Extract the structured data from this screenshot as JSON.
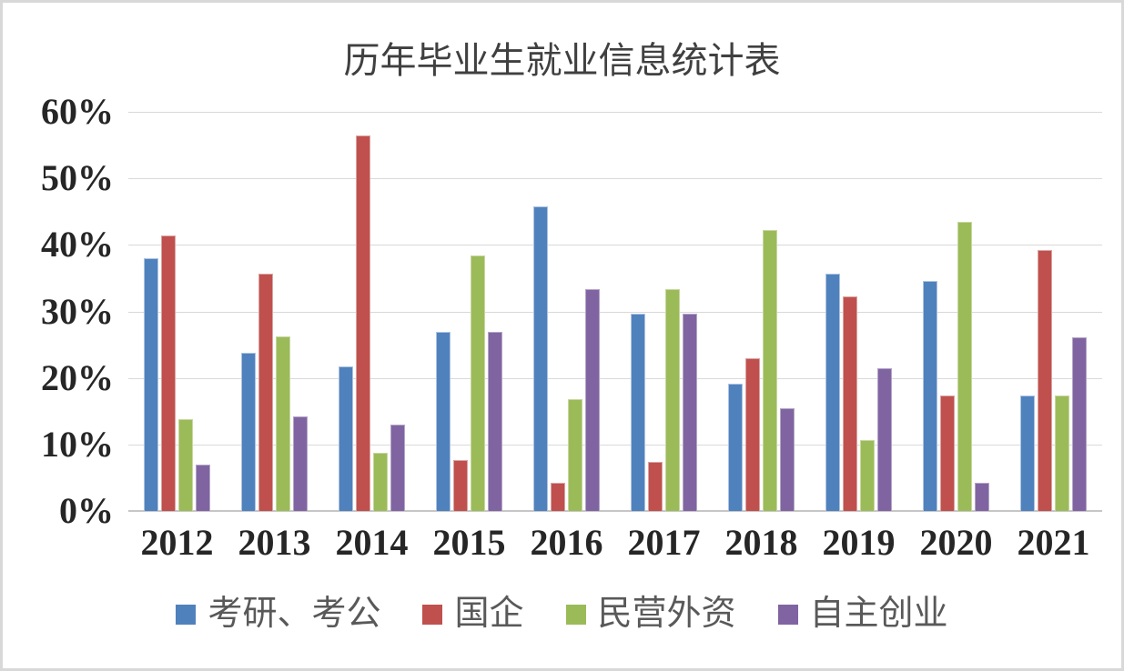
{
  "chart_data": {
    "type": "bar",
    "title": "历年毕业生就业信息统计表",
    "categories": [
      "2012",
      "2013",
      "2014",
      "2015",
      "2016",
      "2017",
      "2018",
      "2019",
      "2020",
      "2021"
    ],
    "series": [
      {
        "name": "考研、考公",
        "color": "#4F81BD",
        "border_color": "#AEC3E0",
        "values": [
          38.0,
          23.8,
          21.8,
          26.9,
          45.8,
          29.6,
          19.2,
          35.7,
          34.6,
          17.3
        ]
      },
      {
        "name": "国企",
        "color": "#C0504D",
        "border_color": "#D9A5A3",
        "values": [
          41.4,
          35.7,
          56.5,
          7.7,
          4.2,
          7.4,
          23.0,
          32.2,
          17.3,
          39.2
        ]
      },
      {
        "name": "民营外资",
        "color": "#9BBB59",
        "border_color": "#C7D79F",
        "values": [
          13.8,
          26.2,
          8.7,
          38.4,
          16.8,
          33.3,
          42.3,
          10.6,
          43.5,
          17.3
        ]
      },
      {
        "name": "自主创业",
        "color": "#8064A2",
        "border_color": "#B4A6C6",
        "values": [
          7.0,
          14.2,
          13.0,
          26.9,
          33.3,
          29.6,
          15.4,
          21.4,
          4.2,
          26.1
        ]
      }
    ],
    "ylim": [
      0,
      60
    ],
    "ytick_step": 10,
    "ytick_labels": [
      "0%",
      "10%",
      "20%",
      "30%",
      "40%",
      "50%",
      "60%"
    ],
    "xlabel": "",
    "ylabel": "",
    "grid": true,
    "legend_position": "bottom",
    "colors": {
      "background": "#ffffff",
      "frame_border": "#d8d8d8",
      "gridline": "#d9d9d9",
      "axis_line": "#c6c6c6",
      "title_text": "#404040",
      "tick_text": "#262626",
      "legend_text": "#595959"
    }
  }
}
